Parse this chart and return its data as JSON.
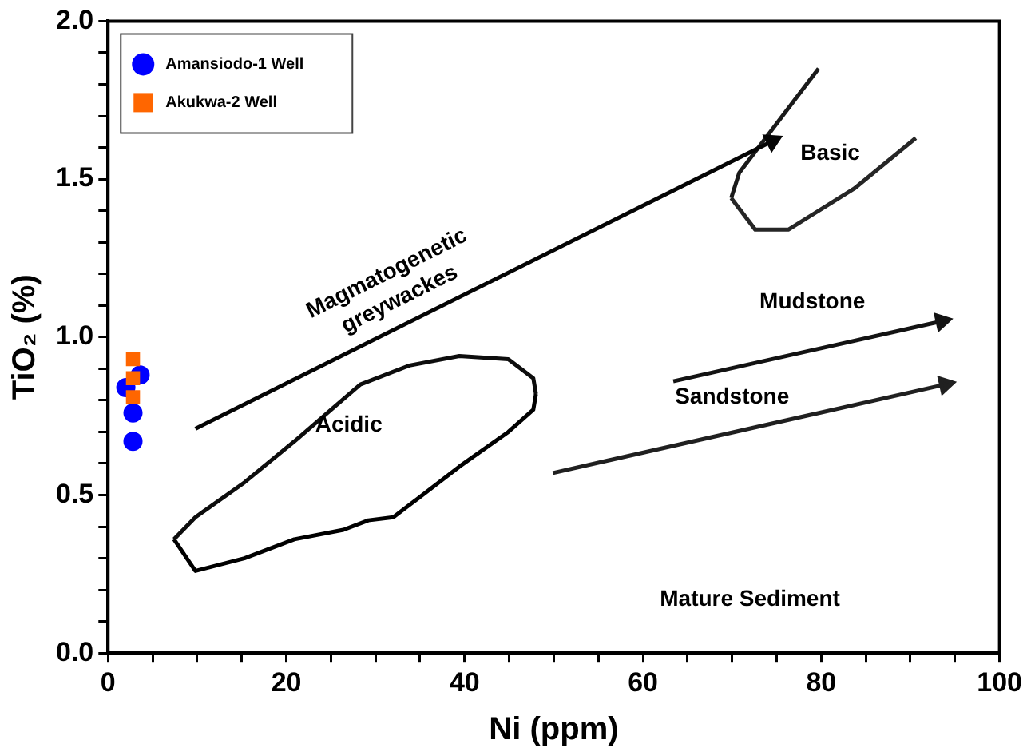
{
  "chart_data": {
    "type": "scatter",
    "xlabel": "Ni (ppm)",
    "ylabel": "TiO₂ (%)",
    "xlim": [
      0,
      100
    ],
    "ylim": [
      0,
      2.0
    ],
    "xticks": [
      0,
      {
        "value": 5,
        "label": null
      },
      {
        "value": 10,
        "label": null
      },
      {
        "value": 15,
        "label": null
      },
      20,
      {
        "value": 25,
        "label": null
      },
      {
        "value": 30,
        "label": null
      },
      {
        "value": 35,
        "label": null
      },
      40,
      {
        "value": 45,
        "label": null
      },
      {
        "value": 50,
        "label": null
      },
      {
        "value": 55,
        "label": null
      },
      60,
      {
        "value": 65,
        "label": null
      },
      {
        "value": 70,
        "label": null
      },
      {
        "value": 75,
        "label": null
      },
      80,
      {
        "value": 85,
        "label": null
      },
      {
        "value": 90,
        "label": null
      },
      {
        "value": 95,
        "label": null
      },
      100
    ],
    "yticks": [
      {
        "value": 0,
        "label": "0.0"
      },
      {
        "value": 0.1,
        "label": null
      },
      {
        "value": 0.2,
        "label": null
      },
      {
        "value": 0.3,
        "label": null
      },
      {
        "value": 0.4,
        "label": null
      },
      {
        "value": 0.5,
        "label": "0.5"
      },
      {
        "value": 0.6,
        "label": null
      },
      {
        "value": 0.7,
        "label": null
      },
      {
        "value": 0.8,
        "label": null
      },
      {
        "value": 0.9,
        "label": null
      },
      {
        "value": 1.0,
        "label": "1.0"
      },
      {
        "value": 1.1,
        "label": null
      },
      {
        "value": 1.2,
        "label": null
      },
      {
        "value": 1.3,
        "label": null
      },
      {
        "value": 1.4,
        "label": null
      },
      {
        "value": 1.5,
        "label": "1.5"
      },
      {
        "value": 1.6,
        "label": null
      },
      {
        "value": 1.7,
        "label": null
      },
      {
        "value": 1.8,
        "label": null
      },
      {
        "value": 1.9,
        "label": null
      },
      {
        "value": 2.0,
        "label": "2.0"
      }
    ],
    "grid": false,
    "legend": "top left",
    "series": [
      {
        "name": "Amansiodo-1 Well",
        "color": "#0000ff",
        "marker": "circle",
        "x": [
          2.8,
          2.8,
          2.0,
          3.6
        ],
        "values": [
          0.67,
          0.76,
          0.84,
          0.88
        ]
      },
      {
        "name": "Akukwa-2 Well",
        "color": "#ff6600",
        "marker": "square",
        "x": [
          2.8,
          2.8,
          2.8
        ],
        "values": [
          0.81,
          0.87,
          0.93
        ]
      },
      {
        "type": "line",
        "color": "#000000",
        "marker": "none",
        "x": [
          7.4,
          9.8,
          15.3,
          20.9,
          26.4,
          29.2,
          32,
          34.8,
          39.4,
          44.9,
          47.7,
          48.0
        ],
        "values": [
          0.36,
          0.26,
          0.3,
          0.36,
          0.39,
          0.42,
          0.43,
          0.49,
          0.59,
          0.7,
          0.77,
          0.82
        ]
      },
      {
        "type": "line",
        "color": "#0d0d0d",
        "marker": "none",
        "x": [
          7.4,
          9.8,
          15.3,
          20.9,
          28.3,
          33.8,
          39.4,
          44.9,
          47.7,
          48.0
        ],
        "values": [
          0.36,
          0.43,
          0.54,
          0.67,
          0.85,
          0.91,
          0.94,
          0.93,
          0.87,
          0.82
        ]
      },
      {
        "type": "line",
        "color": "#1a1a1a",
        "marker": "none",
        "x": [
          69.9,
          70.8,
          79.7
        ],
        "values": [
          1.44,
          1.52,
          1.85
        ]
      },
      {
        "type": "line",
        "color": "#262626",
        "marker": "none",
        "x": [
          69.9,
          72.6,
          76.3,
          83.7,
          90.6
        ],
        "values": [
          1.44,
          1.34,
          1.34,
          1.47,
          1.63
        ]
      },
      {
        "type": "line",
        "color": "#050505",
        "marker": "triangle",
        "x": [
          9.8,
          74.5
        ],
        "values": [
          0.71,
          1.62
        ]
      },
      {
        "type": "line",
        "color": "#131313",
        "marker": "triangle",
        "x": [
          63.4,
          93.5
        ],
        "values": [
          0.86,
          1.05
        ]
      },
      {
        "type": "line",
        "color": "#202020",
        "marker": "triangle",
        "x": [
          49.9,
          93.9
        ],
        "values": [
          0.57,
          0.85
        ]
      }
    ],
    "annotations": [
      "Acidic",
      "Basic",
      "Mudstone",
      "Sandstone",
      "Magmatogenetic\ngreywackes",
      "Mature Sediment"
    ]
  }
}
